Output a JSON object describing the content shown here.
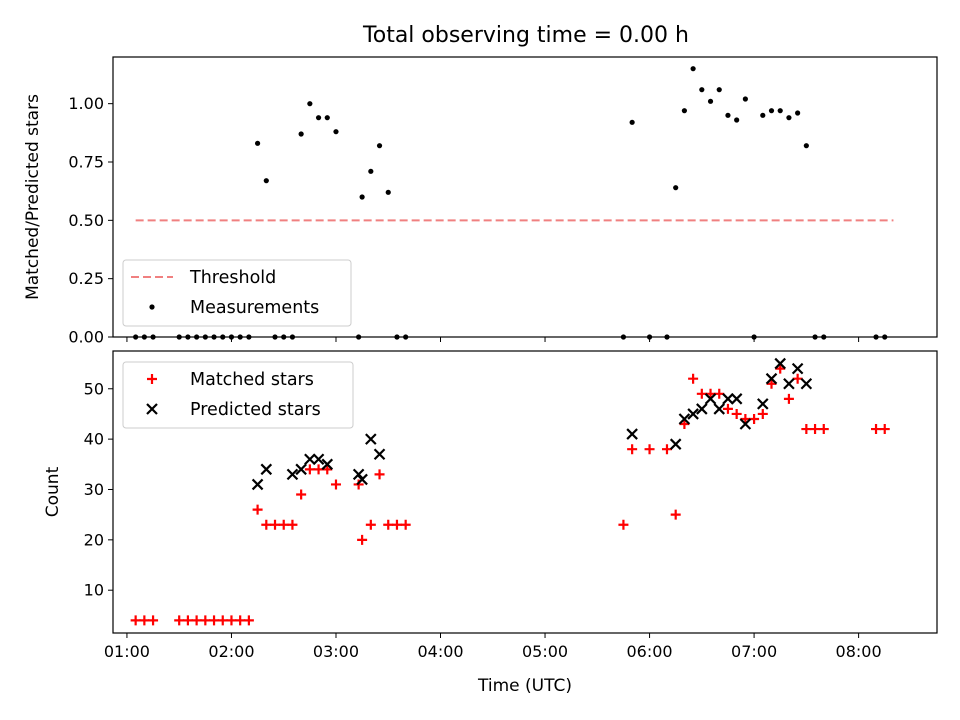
{
  "chart_data": [
    {
      "type": "scatter",
      "title": "Total observing time = 0.00 h",
      "xlabel": "",
      "ylabel": "Matched/Predicted stars",
      "xlim": [
        "00:52",
        "08:45"
      ],
      "ylim": [
        0,
        1.2
      ],
      "y_ticks": [
        "0.00",
        "0.25",
        "0.50",
        "0.75",
        "1.00"
      ],
      "grid": false,
      "legend_position": "lower-left",
      "series": [
        {
          "name": "Threshold",
          "kind": "dashed-line",
          "color": "#f08080",
          "x": [
            "01:05",
            "08:20"
          ],
          "y": [
            0.5,
            0.5
          ]
        },
        {
          "name": "Measurements",
          "kind": "points",
          "color": "#000000",
          "x": [
            "01:05",
            "01:10",
            "01:15",
            "01:30",
            "01:35",
            "01:40",
            "01:45",
            "01:50",
            "01:55",
            "02:00",
            "02:05",
            "02:10",
            "02:15",
            "02:20",
            "02:25",
            "02:30",
            "02:35",
            "02:40",
            "02:45",
            "02:50",
            "02:55",
            "03:00",
            "03:13",
            "03:15",
            "03:20",
            "03:25",
            "03:30",
            "03:35",
            "03:40",
            "05:45",
            "05:50",
            "06:00",
            "06:10",
            "06:15",
            "06:20",
            "06:25",
            "06:30",
            "06:35",
            "06:40",
            "06:45",
            "06:50",
            "06:55",
            "07:00",
            "07:05",
            "07:10",
            "07:15",
            "07:20",
            "07:25",
            "07:30",
            "07:35",
            "07:40",
            "08:10",
            "08:15"
          ],
          "y": [
            0,
            0,
            0,
            0,
            0,
            0,
            0,
            0,
            0,
            0,
            0,
            0,
            0.83,
            0.67,
            0,
            0,
            0,
            0.87,
            1.0,
            0.94,
            0.94,
            0.88,
            0,
            0.6,
            0.71,
            0.82,
            0.62,
            0,
            0,
            0,
            0.92,
            0,
            0,
            0.64,
            0.97,
            1.15,
            1.06,
            1.01,
            1.06,
            0.95,
            0.93,
            1.02,
            0,
            0.95,
            0.97,
            0.97,
            0.94,
            0.96,
            0.82,
            0,
            0,
            0,
            0
          ]
        }
      ]
    },
    {
      "type": "scatter",
      "title": "",
      "xlabel": "Time (UTC)",
      "ylabel": "Count",
      "xlim": [
        "00:52",
        "08:45"
      ],
      "ylim": [
        1.5,
        57.5
      ],
      "x_ticks": [
        "01:00",
        "02:00",
        "03:00",
        "04:00",
        "05:00",
        "06:00",
        "07:00",
        "08:00"
      ],
      "y_ticks": [
        "10",
        "20",
        "30",
        "40",
        "50"
      ],
      "grid": false,
      "legend_position": "top-left",
      "series": [
        {
          "name": "Matched stars",
          "marker": "plus",
          "color": "#ff0000",
          "x": [
            "01:05",
            "01:10",
            "01:15",
            "01:30",
            "01:35",
            "01:40",
            "01:45",
            "01:50",
            "01:55",
            "02:00",
            "02:05",
            "02:10",
            "02:15",
            "02:20",
            "02:25",
            "02:30",
            "02:35",
            "02:40",
            "02:45",
            "02:50",
            "02:55",
            "03:00",
            "03:13",
            "03:15",
            "03:20",
            "03:25",
            "03:30",
            "03:35",
            "03:40",
            "05:45",
            "05:50",
            "06:00",
            "06:10",
            "06:15",
            "06:20",
            "06:25",
            "06:30",
            "06:35",
            "06:40",
            "06:45",
            "06:50",
            "06:55",
            "07:00",
            "07:05",
            "07:10",
            "07:15",
            "07:20",
            "07:25",
            "07:30",
            "07:35",
            "07:40",
            "08:10",
            "08:15"
          ],
          "y": [
            4,
            4,
            4,
            4,
            4,
            4,
            4,
            4,
            4,
            4,
            4,
            4,
            26,
            23,
            23,
            23,
            23,
            29,
            34,
            34,
            34,
            31,
            31,
            20,
            23,
            33,
            23,
            23,
            23,
            23,
            38,
            38,
            38,
            25,
            43,
            52,
            49,
            49,
            49,
            46,
            45,
            44,
            44,
            45,
            51,
            54,
            48,
            52,
            42,
            42,
            42,
            42,
            42
          ]
        },
        {
          "name": "Predicted stars",
          "marker": "x",
          "color": "#000000",
          "x": [
            "02:15",
            "02:20",
            "02:35",
            "02:40",
            "02:45",
            "02:50",
            "02:55",
            "03:13",
            "03:15",
            "03:20",
            "03:25",
            "05:50",
            "06:15",
            "06:20",
            "06:25",
            "06:30",
            "06:35",
            "06:40",
            "06:45",
            "06:50",
            "06:55",
            "07:05",
            "07:10",
            "07:15",
            "07:20",
            "07:25",
            "07:30"
          ],
          "y": [
            31,
            34,
            33,
            34,
            36,
            36,
            35,
            33,
            32,
            40,
            37,
            41,
            39,
            44,
            45,
            46,
            48,
            46,
            48,
            48,
            43,
            47,
            52,
            55,
            51,
            54,
            51
          ]
        }
      ]
    }
  ]
}
